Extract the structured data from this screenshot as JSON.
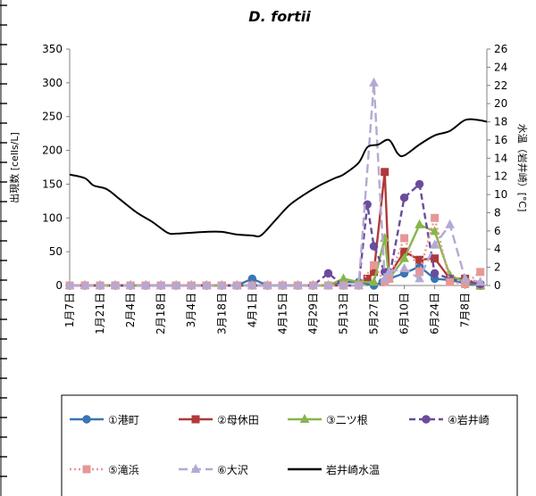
{
  "chart_data": {
    "type": "line",
    "title": "D. fortii",
    "ylabel": "出現数 [cells/L]",
    "y2label": "水温（岩井崎）[°C]",
    "ylim": [
      0,
      350
    ],
    "y2lim": [
      0,
      26
    ],
    "yticks": [
      0,
      50,
      100,
      150,
      200,
      250,
      300,
      350
    ],
    "y2ticks": [
      0,
      2,
      4,
      6,
      8,
      10,
      12,
      14,
      16,
      18,
      20,
      22,
      24,
      26
    ],
    "x_start_day": 7,
    "x_end_day": 199,
    "xticks": [
      {
        "label": "1月7日",
        "day": 7
      },
      {
        "label": "1月21日",
        "day": 21
      },
      {
        "label": "2月4日",
        "day": 35
      },
      {
        "label": "2月18日",
        "day": 49
      },
      {
        "label": "3月4日",
        "day": 63
      },
      {
        "label": "3月18日",
        "day": 77
      },
      {
        "label": "4月1日",
        "day": 91
      },
      {
        "label": "4月15日",
        "day": 105
      },
      {
        "label": "4月29日",
        "day": 119
      },
      {
        "label": "5月13日",
        "day": 133
      },
      {
        "label": "5月27日",
        "day": 147
      },
      {
        "label": "6月10日",
        "day": 161
      },
      {
        "label": "6月24日",
        "day": 175
      },
      {
        "label": "7月8日",
        "day": 189
      }
    ],
    "grid": false,
    "legend_position": "bottom",
    "series": [
      {
        "name": "①港町",
        "color": "#3a75b5",
        "marker": "circle",
        "dash": "solid",
        "points": [
          [
            7,
            0
          ],
          [
            14,
            0
          ],
          [
            21,
            0
          ],
          [
            28,
            0
          ],
          [
            35,
            0
          ],
          [
            42,
            0
          ],
          [
            49,
            0
          ],
          [
            56,
            0
          ],
          [
            63,
            0
          ],
          [
            70,
            0
          ],
          [
            77,
            0
          ],
          [
            84,
            0
          ],
          [
            91,
            10
          ],
          [
            98,
            0
          ],
          [
            105,
            0
          ],
          [
            112,
            0
          ],
          [
            119,
            0
          ],
          [
            126,
            0
          ],
          [
            133,
            5
          ],
          [
            140,
            5
          ],
          [
            147,
            0
          ],
          [
            151,
            5
          ],
          [
            154,
            10
          ],
          [
            161,
            18
          ],
          [
            168,
            28
          ],
          [
            175,
            10
          ],
          [
            182,
            8
          ],
          [
            189,
            3
          ],
          [
            196,
            0
          ]
        ]
      },
      {
        "name": "②母休田",
        "color": "#b03a38",
        "marker": "square",
        "dash": "solid",
        "points": [
          [
            7,
            0
          ],
          [
            14,
            0
          ],
          [
            21,
            0
          ],
          [
            28,
            0
          ],
          [
            35,
            0
          ],
          [
            42,
            0
          ],
          [
            49,
            0
          ],
          [
            56,
            0
          ],
          [
            63,
            0
          ],
          [
            70,
            0
          ],
          [
            77,
            0
          ],
          [
            84,
            0
          ],
          [
            91,
            0
          ],
          [
            98,
            0
          ],
          [
            105,
            0
          ],
          [
            112,
            0
          ],
          [
            119,
            0
          ],
          [
            126,
            0
          ],
          [
            133,
            0
          ],
          [
            140,
            0
          ],
          [
            144,
            10
          ],
          [
            147,
            20
          ],
          [
            152,
            168
          ],
          [
            154,
            15
          ],
          [
            161,
            50
          ],
          [
            168,
            38
          ],
          [
            175,
            40
          ],
          [
            182,
            10
          ],
          [
            189,
            10
          ],
          [
            196,
            0
          ]
        ]
      },
      {
        "name": "③二ツ根",
        "color": "#86b64a",
        "marker": "triangle",
        "dash": "solid",
        "points": [
          [
            7,
            0
          ],
          [
            14,
            0
          ],
          [
            21,
            0
          ],
          [
            28,
            0
          ],
          [
            35,
            0
          ],
          [
            42,
            0
          ],
          [
            49,
            0
          ],
          [
            56,
            0
          ],
          [
            63,
            0
          ],
          [
            70,
            0
          ],
          [
            77,
            0
          ],
          [
            84,
            0
          ],
          [
            91,
            0
          ],
          [
            98,
            0
          ],
          [
            105,
            0
          ],
          [
            112,
            0
          ],
          [
            119,
            0
          ],
          [
            126,
            0
          ],
          [
            133,
            10
          ],
          [
            140,
            5
          ],
          [
            147,
            5
          ],
          [
            152,
            70
          ],
          [
            154,
            10
          ],
          [
            161,
            40
          ],
          [
            168,
            90
          ],
          [
            175,
            80
          ],
          [
            182,
            15
          ],
          [
            189,
            5
          ],
          [
            196,
            0
          ]
        ]
      },
      {
        "name": "④岩井崎",
        "color": "#6a4c9c",
        "marker": "circle",
        "dash": "dash",
        "points": [
          [
            7,
            0
          ],
          [
            14,
            0
          ],
          [
            21,
            0
          ],
          [
            28,
            0
          ],
          [
            35,
            0
          ],
          [
            42,
            0
          ],
          [
            49,
            0
          ],
          [
            56,
            0
          ],
          [
            63,
            0
          ],
          [
            70,
            0
          ],
          [
            77,
            0
          ],
          [
            84,
            0
          ],
          [
            91,
            0
          ],
          [
            98,
            0
          ],
          [
            105,
            0
          ],
          [
            112,
            0
          ],
          [
            119,
            0
          ],
          [
            126,
            18
          ],
          [
            133,
            0
          ],
          [
            140,
            0
          ],
          [
            144,
            120
          ],
          [
            147,
            58
          ],
          [
            152,
            20
          ],
          [
            154,
            10
          ],
          [
            161,
            130
          ],
          [
            168,
            150
          ],
          [
            175,
            18
          ],
          [
            182,
            10
          ],
          [
            189,
            5
          ],
          [
            196,
            2
          ]
        ]
      },
      {
        "name": "⑤滝浜",
        "color": "#e59896",
        "marker": "square",
        "dash": "dot",
        "points": [
          [
            7,
            0
          ],
          [
            14,
            0
          ],
          [
            21,
            0
          ],
          [
            28,
            0
          ],
          [
            35,
            0
          ],
          [
            42,
            0
          ],
          [
            49,
            0
          ],
          [
            56,
            0
          ],
          [
            63,
            0
          ],
          [
            70,
            0
          ],
          [
            77,
            0
          ],
          [
            84,
            0
          ],
          [
            91,
            0
          ],
          [
            98,
            0
          ],
          [
            105,
            0
          ],
          [
            112,
            0
          ],
          [
            119,
            0
          ],
          [
            126,
            0
          ],
          [
            133,
            0
          ],
          [
            140,
            0
          ],
          [
            147,
            30
          ],
          [
            152,
            5
          ],
          [
            154,
            10
          ],
          [
            161,
            70
          ],
          [
            168,
            20
          ],
          [
            175,
            100
          ],
          [
            182,
            5
          ],
          [
            189,
            2
          ],
          [
            196,
            20
          ]
        ]
      },
      {
        "name": "⑥大沢",
        "color": "#b5a9d3",
        "marker": "triangle",
        "dash": "longdash",
        "points": [
          [
            7,
            0
          ],
          [
            14,
            0
          ],
          [
            21,
            0
          ],
          [
            28,
            0
          ],
          [
            35,
            0
          ],
          [
            42,
            0
          ],
          [
            49,
            0
          ],
          [
            56,
            0
          ],
          [
            63,
            0
          ],
          [
            70,
            0
          ],
          [
            77,
            0
          ],
          [
            84,
            0
          ],
          [
            91,
            0
          ],
          [
            98,
            0
          ],
          [
            105,
            0
          ],
          [
            112,
            0
          ],
          [
            119,
            0
          ],
          [
            126,
            0
          ],
          [
            133,
            0
          ],
          [
            140,
            0
          ],
          [
            147,
            300
          ],
          [
            152,
            10
          ],
          [
            154,
            20
          ],
          [
            161,
            25
          ],
          [
            168,
            10
          ],
          [
            175,
            60
          ],
          [
            182,
            90
          ],
          [
            189,
            10
          ],
          [
            196,
            5
          ]
        ]
      },
      {
        "name": "岩井崎水温",
        "color": "#000000",
        "marker": "none",
        "dash": "solid",
        "axis": "right",
        "smooth": true,
        "points": [
          [
            7,
            12.2
          ],
          [
            14,
            11.8
          ],
          [
            18,
            11.0
          ],
          [
            24,
            10.6
          ],
          [
            30,
            9.5
          ],
          [
            38,
            8.0
          ],
          [
            45,
            7.0
          ],
          [
            52,
            5.8
          ],
          [
            56,
            5.7
          ],
          [
            63,
            5.8
          ],
          [
            70,
            5.9
          ],
          [
            77,
            5.9
          ],
          [
            84,
            5.6
          ],
          [
            91,
            5.5
          ],
          [
            95,
            5.5
          ],
          [
            101,
            7.0
          ],
          [
            108,
            8.8
          ],
          [
            115,
            10.0
          ],
          [
            122,
            11.0
          ],
          [
            129,
            11.8
          ],
          [
            133,
            12.2
          ],
          [
            140,
            13.5
          ],
          [
            144,
            15.2
          ],
          [
            149,
            15.5
          ],
          [
            154,
            16.0
          ],
          [
            158,
            14.5
          ],
          [
            161,
            14.3
          ],
          [
            168,
            15.5
          ],
          [
            175,
            16.5
          ],
          [
            182,
            17.0
          ],
          [
            189,
            18.2
          ],
          [
            195,
            18.2
          ],
          [
            199,
            18.0
          ]
        ]
      }
    ]
  },
  "legend": {
    "items": [
      {
        "label": "①港町",
        "color": "#3a75b5",
        "marker": "circle",
        "dash": "solid"
      },
      {
        "label": "②母休田",
        "color": "#b03a38",
        "marker": "square",
        "dash": "solid"
      },
      {
        "label": "③二ツ根",
        "color": "#86b64a",
        "marker": "triangle",
        "dash": "solid"
      },
      {
        "label": "④岩井崎",
        "color": "#6a4c9c",
        "marker": "circle",
        "dash": "dash"
      },
      {
        "label": "⑤滝浜",
        "color": "#e59896",
        "marker": "square",
        "dash": "dot"
      },
      {
        "label": "⑥大沢",
        "color": "#b5a9d3",
        "marker": "triangle",
        "dash": "longdash"
      },
      {
        "label": "岩井崎水温",
        "color": "#000000",
        "marker": "none",
        "dash": "solid"
      }
    ]
  }
}
